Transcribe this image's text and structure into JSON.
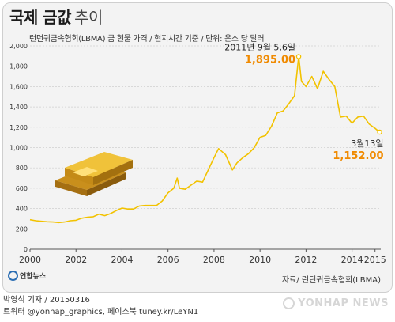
{
  "header": {
    "title_main": "국제 금값",
    "title_sub": "추이",
    "subtitle": "런던귀금속협회(LBMA) 금 현물 가격 / 현지시간 기준 / 단위: 온스 당 달러"
  },
  "chart_data": {
    "type": "line",
    "x_ticks": [
      "2000",
      "2002",
      "2004",
      "2006",
      "2008",
      "2010",
      "2012",
      "2014",
      "2015"
    ],
    "y_ticks": [
      "0",
      "200",
      "400",
      "600",
      "800",
      "1,000",
      "1,200",
      "1,400",
      "1,600",
      "1,800",
      "2,000"
    ],
    "xlim": [
      2000,
      2015.25
    ],
    "ylim": [
      0,
      2000
    ],
    "grid": true,
    "line_color": "#f2c200",
    "series": [
      {
        "x": [
          2000.0,
          2000.25,
          2000.5,
          2000.75,
          2001.0,
          2001.25,
          2001.5,
          2001.75,
          2002.0,
          2002.25,
          2002.5,
          2002.75,
          2003.0,
          2003.25,
          2003.5,
          2003.75,
          2004.0,
          2004.25,
          2004.5,
          2004.75,
          2005.0,
          2005.25,
          2005.5,
          2005.75,
          2006.0,
          2006.25,
          2006.4,
          2006.5,
          2006.75,
          2007.0,
          2007.25,
          2007.5,
          2007.75,
          2008.0,
          2008.2,
          2008.5,
          2008.8,
          2009.0,
          2009.25,
          2009.5,
          2009.75,
          2010.0,
          2010.25,
          2010.5,
          2010.75,
          2011.0,
          2011.25,
          2011.5,
          2011.68,
          2011.8,
          2012.0,
          2012.25,
          2012.5,
          2012.75,
          2013.0,
          2013.25,
          2013.5,
          2013.75,
          2014.0,
          2014.25,
          2014.5,
          2014.75,
          2015.0,
          2015.2
        ],
        "y": [
          290,
          280,
          275,
          270,
          268,
          262,
          268,
          280,
          285,
          305,
          315,
          320,
          345,
          330,
          350,
          380,
          405,
          395,
          395,
          425,
          430,
          430,
          430,
          475,
          555,
          600,
          700,
          600,
          590,
          630,
          670,
          660,
          780,
          900,
          990,
          930,
          780,
          850,
          900,
          940,
          1000,
          1100,
          1120,
          1210,
          1340,
          1360,
          1430,
          1510,
          1895,
          1650,
          1600,
          1700,
          1580,
          1750,
          1670,
          1600,
          1300,
          1310,
          1240,
          1300,
          1310,
          1230,
          1190,
          1152
        ]
      }
    ],
    "annotations": [
      {
        "label": "2011년 9월 5,6일",
        "value": "1,895.00",
        "x": 2011.68,
        "y": 1895
      },
      {
        "label": "3월13일",
        "value": "1,152.00",
        "x": 2015.2,
        "y": 1152
      }
    ]
  },
  "footer": {
    "source": "자료/ 런던귀금속협회(LBMA)",
    "logo": "연합뉴스",
    "credit_line1": "박영석 기자 / 20150316",
    "credit_line2": "트위터 @yonhap_graphics, 페이스북 tuney.kr/LeYN1",
    "watermark": "YONHAP NEWS"
  }
}
